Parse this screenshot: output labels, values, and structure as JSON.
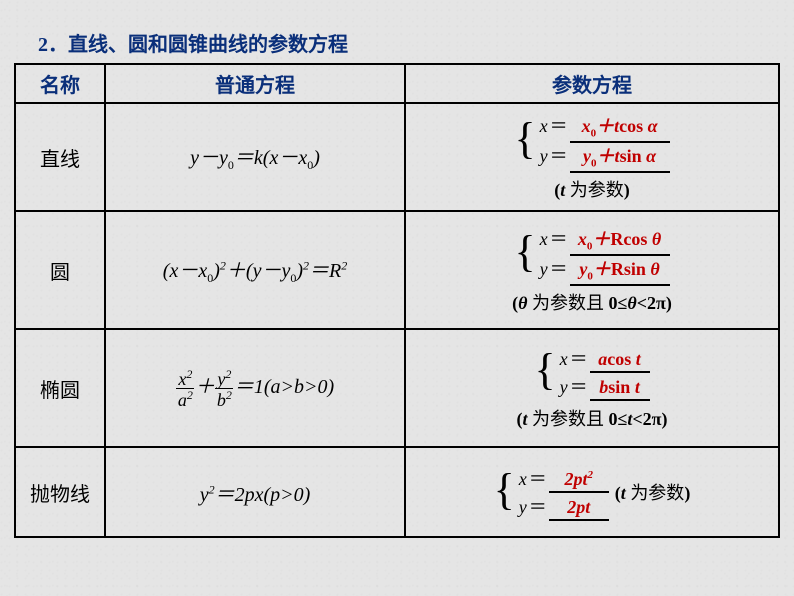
{
  "title": {
    "num": "2．",
    "text": "直线、圆和圆锥曲线的参数方程"
  },
  "headers": {
    "name": "名称",
    "normal": "普通方程",
    "param": "参数方程"
  },
  "rows": {
    "line": {
      "name": "直线",
      "eq_html": "<i>y</i>－<i>y</i><sub>0</sub>＝<i>k</i>(<i>x</i>－<i>x</i><sub>0</sub>)",
      "p1": "<i>x</i><sub>0</sub>＋<i>t</i><span class='n'>cos </span><i>α</i>",
      "p2": "<i>y</i><sub>0</sub>＋<i>t</i><span class='n'>sin </span><i>α</i>",
      "note": "(<i>t</i> <span class='cn'>为参数</span>)"
    },
    "circle": {
      "name": "圆",
      "eq_html": "(<i>x</i>－<i>x</i><sub>0</sub>)<sup>2</sup>＋(<i>y</i>－<i>y</i><sub>0</sub>)<sup>2</sup>＝<i>R</i><sup>2</sup>",
      "p1": "<i>x</i><sub>0</sub>＋<span class='n'>R</span><span class='n'>cos </span><i>θ</i>",
      "p2": "<i>y</i><sub>0</sub>＋<span class='n'>R</span><span class='n'>sin </span><i>θ</i>",
      "note": "(<i>θ</i> <span class='cn'>为参数且</span> 0≤<i>θ</i>&lt;2π)"
    },
    "ellipse": {
      "name": "椭圆",
      "cond": "＝1(<i>a</i>><i>b</i>>0)",
      "p1": "<i>a</i><span class='n'>cos </span><i>t</i>",
      "p2": "<i>b</i><span class='n'>sin </span><i>t</i>",
      "note": "(<i>t</i> <span class='cn'>为参数且</span> 0≤<i>t</i>&lt;2π)"
    },
    "parabola": {
      "name": "抛物线",
      "eq_html": "<i>y</i><sup>2</sup>＝2<i>px</i>(<i>p</i>>0)",
      "p1": "2<i>pt</i><sup>2</sup>",
      "p2": "2<i>pt</i>",
      "note": "(<i>t</i> <span class='cn'>为参数</span>)"
    }
  }
}
